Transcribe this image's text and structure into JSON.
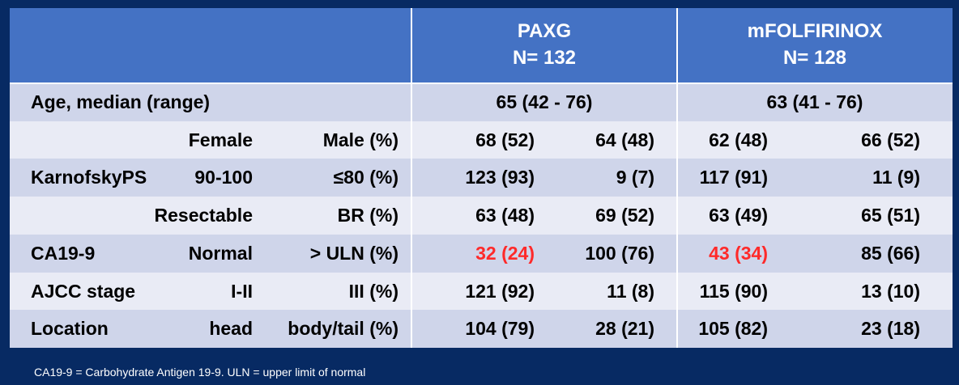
{
  "header": {
    "columns": [
      {
        "name": "PAXG",
        "n": "N= 132"
      },
      {
        "name": "mFOLFIRINOX",
        "n": "N= 128"
      }
    ]
  },
  "table": {
    "rows": [
      {
        "label": "Age, median (range)",
        "values": [
          "65 (42 - 76)",
          "63 (41 - 76)"
        ]
      },
      {
        "group": "Female",
        "unit": "Male (%)",
        "values": [
          "68 (52)",
          "64 (48)",
          "62 (48)",
          "66 (52)"
        ]
      },
      {
        "label": "KarnofskyPS",
        "group": "90-100",
        "unit": "≤80 (%)",
        "values": [
          "123 (93)",
          "9 (7)",
          "117 (91)",
          "11 (9)"
        ]
      },
      {
        "group": "Resectable",
        "unit": "BR (%)",
        "values": [
          "63 (48)",
          "69 (52)",
          "63 (49)",
          "65 (51)"
        ]
      },
      {
        "label": "CA19-9",
        "group": "Normal",
        "unit": "> ULN (%)",
        "values": [
          "32 (24)",
          "100 (76)",
          "43 (34)",
          "85 (66)"
        ],
        "highlight": [
          0,
          2
        ]
      },
      {
        "label": "AJCC stage",
        "group": "I-II",
        "unit": "III (%)",
        "values": [
          "121 (92)",
          "11 (8)",
          "115 (90)",
          "13 (10)"
        ]
      },
      {
        "label": "Location",
        "group": "head",
        "unit": "body/tail (%)",
        "values": [
          "104 (79)",
          "28 (21)",
          "105 (82)",
          "23 (18)"
        ]
      }
    ],
    "highlight_color": "#ff2a2a"
  },
  "footnote": "CA19-9 = Carbohydrate Antigen 19-9. ULN = upper limit of normal"
}
